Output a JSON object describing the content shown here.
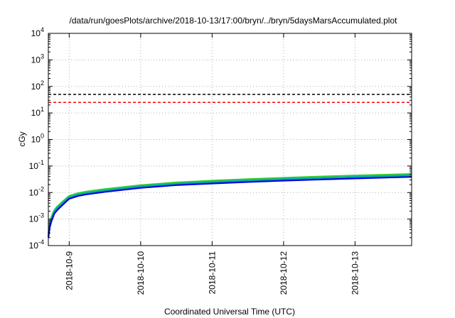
{
  "chart_data": {
    "type": "line",
    "title": "/data/run/goesPlots/archive/2018-10-13/17:00/bryn/../bryn/5daysMarsAccumulated.plot",
    "xlabel": "Coordinated Universal Time (UTC)",
    "ylabel": "cGy",
    "x_type": "date",
    "xlim": [
      "2018-10-08T17:00",
      "2018-10-13T19:00"
    ],
    "x_ticks": [
      "2018-10-9",
      "2018-10-10",
      "2018-10-11",
      "2018-10-12",
      "2018-10-13"
    ],
    "x_tick_positions": [
      "2018-10-09T00:00",
      "2018-10-10T00:00",
      "2018-10-11T00:00",
      "2018-10-12T00:00",
      "2018-10-13T00:00"
    ],
    "y_scale": "log",
    "ylim": [
      0.0001,
      10000
    ],
    "y_ticks": [
      {
        "base": "10",
        "exp": "-4"
      },
      {
        "base": "10",
        "exp": "-3"
      },
      {
        "base": "10",
        "exp": "-2"
      },
      {
        "base": "10",
        "exp": "-1"
      },
      {
        "base": "10",
        "exp": "0"
      },
      {
        "base": "10",
        "exp": "1"
      },
      {
        "base": "10",
        "exp": "2"
      },
      {
        "base": "10",
        "exp": "3"
      },
      {
        "base": "10",
        "exp": "4"
      }
    ],
    "y_tick_values": [
      0.0001,
      0.001,
      0.01,
      0.1,
      1,
      10,
      100,
      1000,
      10000
    ],
    "grid": true,
    "reference_lines": [
      {
        "y": 50,
        "color": "#000000",
        "style": "dashed"
      },
      {
        "y": 25,
        "color": "#ff0000",
        "style": "dashed"
      }
    ],
    "series": [
      {
        "color": "#33cc33",
        "x": [
          "2018-10-08T17:00",
          "2018-10-08T17:30",
          "2018-10-08T18:00",
          "2018-10-08T19:00",
          "2018-10-08T20:00",
          "2018-10-08T22:00",
          "2018-10-09T00:00",
          "2018-10-09T03:00",
          "2018-10-09T06:00",
          "2018-10-09T12:00",
          "2018-10-10T00:00",
          "2018-10-10T12:00",
          "2018-10-11T00:00",
          "2018-10-11T12:00",
          "2018-10-12T00:00",
          "2018-10-12T12:00",
          "2018-10-13T00:00",
          "2018-10-13T19:00"
        ],
        "y": [
          0.0003,
          0.0007,
          0.0012,
          0.0022,
          0.003,
          0.0048,
          0.0075,
          0.0095,
          0.011,
          0.0135,
          0.019,
          0.024,
          0.028,
          0.032,
          0.036,
          0.04,
          0.044,
          0.05
        ]
      },
      {
        "color": "#00aaaa",
        "x": [
          "2018-10-08T17:00",
          "2018-10-08T17:30",
          "2018-10-08T18:00",
          "2018-10-08T19:00",
          "2018-10-08T20:00",
          "2018-10-08T22:00",
          "2018-10-09T00:00",
          "2018-10-09T03:00",
          "2018-10-09T06:00",
          "2018-10-09T12:00",
          "2018-10-10T00:00",
          "2018-10-10T12:00",
          "2018-10-11T00:00",
          "2018-10-11T12:00",
          "2018-10-12T00:00",
          "2018-10-12T12:00",
          "2018-10-13T00:00",
          "2018-10-13T19:00"
        ],
        "y": [
          0.00025,
          0.0006,
          0.001,
          0.0019,
          0.0026,
          0.0042,
          0.0066,
          0.0084,
          0.0097,
          0.012,
          0.017,
          0.0215,
          0.025,
          0.0285,
          0.032,
          0.0355,
          0.039,
          0.0445
        ]
      },
      {
        "color": "#0000dd",
        "x": [
          "2018-10-08T17:00",
          "2018-10-08T17:30",
          "2018-10-08T18:00",
          "2018-10-08T19:00",
          "2018-10-08T20:00",
          "2018-10-08T22:00",
          "2018-10-09T00:00",
          "2018-10-09T03:00",
          "2018-10-09T06:00",
          "2018-10-09T12:00",
          "2018-10-10T00:00",
          "2018-10-10T12:00",
          "2018-10-11T00:00",
          "2018-10-11T12:00",
          "2018-10-12T00:00",
          "2018-10-12T12:00",
          "2018-10-13T00:00",
          "2018-10-13T19:00"
        ],
        "y": [
          0.0002,
          0.0005,
          0.0008,
          0.0016,
          0.0022,
          0.0036,
          0.0058,
          0.0074,
          0.0086,
          0.0106,
          0.015,
          0.019,
          0.022,
          0.025,
          0.028,
          0.031,
          0.034,
          0.039
        ]
      }
    ]
  }
}
